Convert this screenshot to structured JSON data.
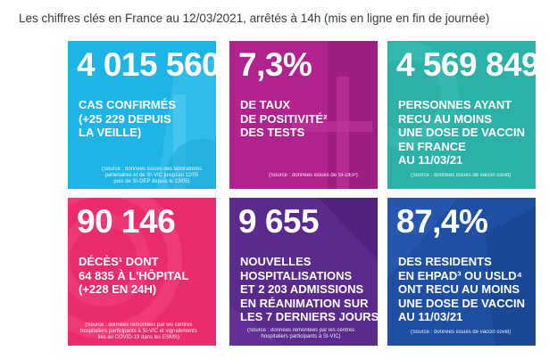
{
  "header": {
    "title": "Les chiffres clés en France au 12/03/2021, arrêtés à 14h (mis en ligne en fin de journée)"
  },
  "cards": [
    {
      "value": "4 015 560",
      "lines": [
        "CAS CONFIRMÉS",
        "(+25 229 DEPUIS",
        "LA VEILLE)"
      ],
      "source": [
        "(Source : données issues des laboratoires",
        "partenaires et de SI-VIC jusqu'au 12/05",
        "puis de SI-DEP depuis le 13/05)"
      ],
      "color": "#1fb4e6"
    },
    {
      "value": "7,3%",
      "lines": [
        "DE TAUX",
        "DE POSITIVITÉ²",
        "DES TESTS"
      ],
      "source": [
        "(Source : données issues de SI-DEP)"
      ],
      "color": "#b0238e"
    },
    {
      "value": "4 569 849",
      "lines": [
        "PERSONNES AYANT",
        "RECU AU MOINS",
        "UNE DOSE DE VACCIN",
        "EN FRANCE",
        "AU 11/03/21"
      ],
      "source": [
        "(Source : données issues de vaccin covid)"
      ],
      "color": "#2bb2a8"
    },
    {
      "value": "90 146",
      "lines": [
        "DÉCÈS¹ DONT",
        "64 835 À L'HÔPITAL",
        "(+228 EN 24H)"
      ],
      "source": [
        "(Source : données remontées par les centres",
        "hospitaliers participants à SI-VIC et signalements",
        "liés au COVID-19 dans les ESMS)"
      ],
      "color": "#ea2c6e"
    },
    {
      "value": "9 655",
      "lines": [
        "NOUVELLES",
        "HOSPITALISATIONS",
        "ET 2 203 ADMISSIONS",
        "EN RÉANIMATION SUR",
        "LES 7 DERNIERS JOURS"
      ],
      "source": [
        "(Source : données remontées par les centres",
        "hospitaliers participants à SI-VIC)"
      ],
      "color": "#5a2a8c"
    },
    {
      "value": "87,4%",
      "lines": [
        "DES RESIDENTS",
        "EN EHPAD³ OU USLD⁴",
        "ONT RECU AU MOINS",
        "UNE DOSE DE VACCIN",
        "AU 11/03/21"
      ],
      "source": [
        "(Source : données issues de vaccin covid)"
      ],
      "color": "#1f4fa3"
    }
  ]
}
